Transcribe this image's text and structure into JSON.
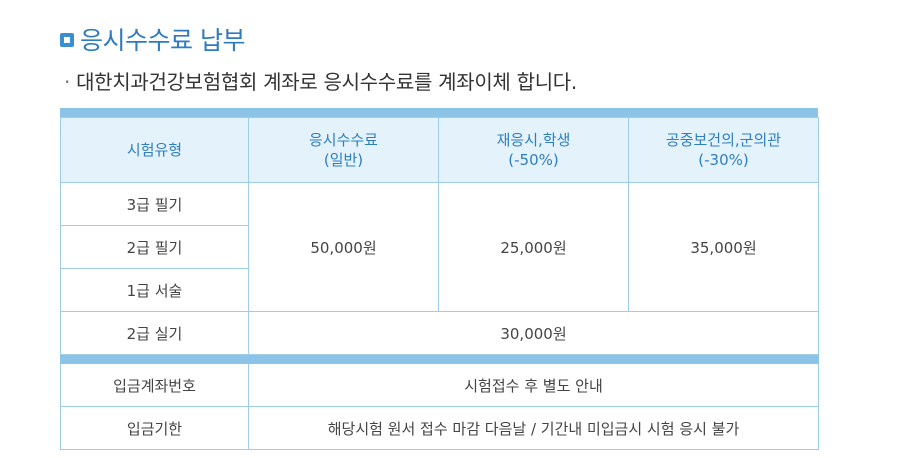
{
  "heading": {
    "title": "응시수수료 납부",
    "subtitle_bullet": "·",
    "subtitle": "대한치과건강보험협회 계좌로 응시수수료를 계좌이체 합니다."
  },
  "fee_table": {
    "headers": [
      {
        "line1": "시험유형",
        "line2": ""
      },
      {
        "line1": "응시수수료",
        "line2": "(일반)"
      },
      {
        "line1": "재응시,학생",
        "line2": "(-50%)"
      },
      {
        "line1": "공중보건의,군의관",
        "line2": "(-30%)"
      }
    ],
    "exam_types": [
      "3급 필기",
      "2급 필기",
      "1급 서술"
    ],
    "fees": {
      "general": "50,000원",
      "retake_student": "25,000원",
      "public_military": "35,000원"
    },
    "practical": {
      "label": "2급 실기",
      "fee": "30,000원"
    }
  },
  "payment_table": {
    "account_label": "입금계좌번호",
    "account_value": "시험접수 후 별도 안내",
    "deadline_label": "입금기한",
    "deadline_value": "해당시험 원서 접수 마감 다음날 / 기간내 미입금시 시험 응시 불가"
  },
  "colors": {
    "accent": "#2e7bbf",
    "header_bg": "#e3f2fb",
    "bar": "#8cc4e8",
    "border": "#9fcde9"
  }
}
